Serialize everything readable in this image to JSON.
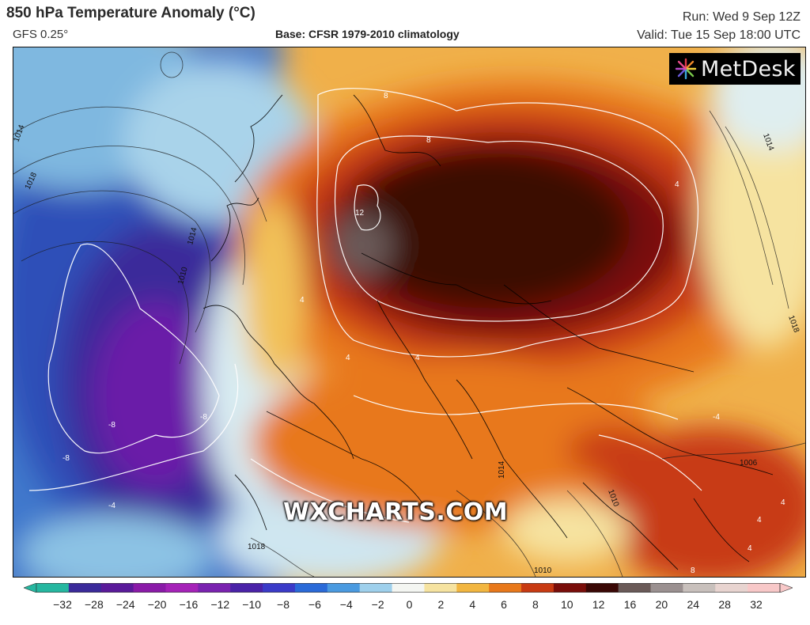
{
  "header": {
    "title": "850 hPa Temperature Anomaly (°C)",
    "model": "GFS 0.25°",
    "base": "Base: CFSR 1979-2010 climatology",
    "run": "Run: Wed 9 Sep 12Z",
    "valid": "Valid: Tue 15 Sep 18:00 UTC"
  },
  "branding": {
    "logo_text": "MetDesk",
    "watermark": "WXCHARTS.COM"
  },
  "map": {
    "contour_labels_isobars": [
      "1014",
      "1018",
      "1014",
      "1010",
      "1014",
      "1018",
      "1014",
      "1010",
      "1006",
      "1018",
      "1010"
    ],
    "contour_labels_anomaly": [
      "8",
      "8",
      "12",
      "4",
      "4",
      "4",
      "-8",
      "-8",
      "-8",
      "-4",
      "4",
      "4",
      "8",
      "-4",
      "4",
      "4"
    ]
  },
  "colorbar": {
    "ticks": [
      "−32",
      "−28",
      "−24",
      "−20",
      "−16",
      "−12",
      "−10",
      "−8",
      "−6",
      "−4",
      "−2",
      "0",
      "2",
      "4",
      "6",
      "8",
      "10",
      "12",
      "16",
      "20",
      "24",
      "28",
      "32"
    ],
    "colors": [
      "#25b7a0",
      "#3a2a9a",
      "#5a1a9a",
      "#8a1aa8",
      "#a522b8",
      "#7a22b0",
      "#4a22a8",
      "#3a3ac8",
      "#2a6ad8",
      "#4a9ae0",
      "#9ed0ec",
      "#f4f6f2",
      "#f6e3a0",
      "#f2b640",
      "#e8781a",
      "#c83a12",
      "#7a0e0a",
      "#3a0806",
      "#6a5a58",
      "#9a9090",
      "#c8c0bc",
      "#e8d4d0",
      "#f8c8c8"
    ]
  }
}
